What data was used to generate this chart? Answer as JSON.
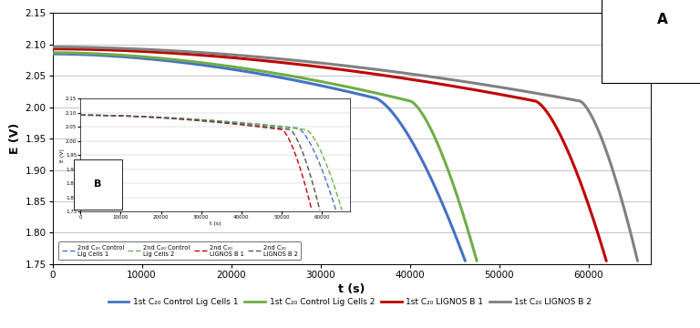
{
  "xlabel": "t (s)",
  "ylabel": "E (V)",
  "xlim": [
    0,
    67000
  ],
  "ylim": [
    1.75,
    2.15
  ],
  "yticks": [
    1.75,
    1.8,
    1.85,
    1.9,
    1.95,
    2.0,
    2.05,
    2.1,
    2.15
  ],
  "xticks": [
    0,
    10000,
    20000,
    30000,
    40000,
    50000,
    60000
  ],
  "series": [
    {
      "label": "1st C₂₀ Control Lig Cells 1",
      "color": "#4472C4",
      "start_v": 2.085,
      "knee_t": 36000,
      "knee_v": 2.015,
      "end_t": 46200,
      "end_v": 1.755
    },
    {
      "label": "1st C₂₀ Control Lig Cells 2",
      "color": "#70AD47",
      "start_v": 2.087,
      "knee_t": 40000,
      "knee_v": 2.01,
      "end_t": 47500,
      "end_v": 1.755
    },
    {
      "label": "1st C₂₀ LIGNOS B 1",
      "color": "#C00000",
      "start_v": 2.093,
      "knee_t": 54000,
      "knee_v": 2.01,
      "end_t": 62000,
      "end_v": 1.755
    },
    {
      "label": "1st C₂₀ LIGNOS B 2",
      "color": "#808080",
      "start_v": 2.096,
      "knee_t": 59000,
      "knee_v": 2.01,
      "end_t": 65500,
      "end_v": 1.755
    }
  ],
  "series_2nd": [
    {
      "label_line1": "2nd C₂₀ Control",
      "label_line2": "Lig Cells 1",
      "color": "#4472C4",
      "start_v": 2.091,
      "knee_t": 54000,
      "knee_v": 2.045,
      "end_t": 63500,
      "end_v": 1.755
    },
    {
      "label_line1": "2nd C₂₀ Control",
      "label_line2": "Lig Cells 2",
      "color": "#70AD47",
      "start_v": 2.091,
      "knee_t": 56000,
      "knee_v": 2.04,
      "end_t": 65000,
      "end_v": 1.755
    },
    {
      "label_line1": "2nd C₂₀",
      "label_line2": "LIGNOS B 1",
      "color": "#C00000",
      "start_v": 2.091,
      "knee_t": 50000,
      "knee_v": 2.04,
      "end_t": 57500,
      "end_v": 1.755
    },
    {
      "label_line1": "2nd C₂₀",
      "label_line2": "LIGNOS B 2",
      "color": "#545454",
      "start_v": 2.091,
      "knee_t": 52000,
      "knee_v": 2.04,
      "end_t": 59500,
      "end_v": 1.755
    }
  ],
  "background_color": "#FFFFFF",
  "grid_color": "#BBBBBB"
}
